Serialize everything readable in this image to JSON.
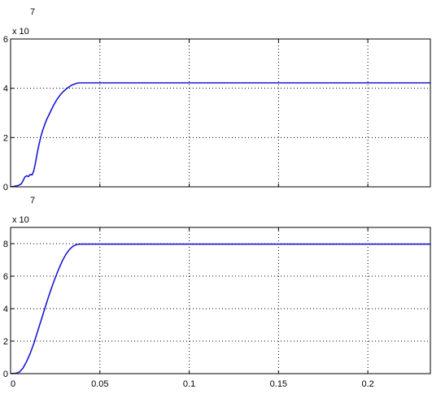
{
  "colors": {
    "line": "#1a1ad4",
    "axis": "#000000",
    "grid": "#000000",
    "background": "#ffffff"
  },
  "chart_data": [
    {
      "type": "line",
      "title": "",
      "xlabel": "",
      "ylabel": "",
      "grid": true,
      "xlim": [
        0,
        0.235
      ],
      "ylim": [
        0,
        6
      ],
      "y_multiplier_label": {
        "base": "x 10",
        "exponent": "7"
      },
      "x_tick_labels": [],
      "y_ticks": [
        {
          "value": 0,
          "label": "0"
        },
        {
          "value": 2,
          "label": "2"
        },
        {
          "value": 4,
          "label": "4"
        },
        {
          "value": 6,
          "label": "6"
        }
      ],
      "x_grid": [
        0.05,
        0.1,
        0.15,
        0.2
      ],
      "series": [
        {
          "x": [
            0,
            0.002,
            0.004,
            0.005,
            0.006,
            0.007,
            0.008,
            0.009,
            0.01,
            0.011,
            0.012,
            0.013,
            0.014,
            0.015,
            0.016,
            0.017,
            0.018,
            0.019,
            0.02,
            0.022,
            0.024,
            0.026,
            0.028,
            0.03,
            0.032,
            0.034,
            0.036,
            0.038,
            0.04,
            0.06,
            0.1,
            0.15,
            0.2,
            0.235
          ],
          "y": [
            0.0,
            0.02,
            0.05,
            0.08,
            0.12,
            0.25,
            0.4,
            0.45,
            0.42,
            0.5,
            0.48,
            0.65,
            1.0,
            1.4,
            1.75,
            2.05,
            2.3,
            2.5,
            2.7,
            3.0,
            3.3,
            3.55,
            3.75,
            3.9,
            4.02,
            4.12,
            4.18,
            4.22,
            4.22,
            4.22,
            4.22,
            4.22,
            4.22,
            4.22
          ]
        }
      ]
    },
    {
      "type": "line",
      "title": "",
      "xlabel": "",
      "ylabel": "",
      "grid": true,
      "xlim": [
        0,
        0.235
      ],
      "ylim": [
        0,
        9
      ],
      "y_multiplier_label": {
        "base": "x 10",
        "exponent": "7"
      },
      "x_tick_labels": [
        {
          "value": 0,
          "label": "0"
        },
        {
          "value": 0.05,
          "label": "0.05"
        },
        {
          "value": 0.1,
          "label": "0.1"
        },
        {
          "value": 0.15,
          "label": "0.15"
        },
        {
          "value": 0.2,
          "label": "0.2"
        }
      ],
      "y_ticks": [
        {
          "value": 0,
          "label": "0"
        },
        {
          "value": 2,
          "label": "2"
        },
        {
          "value": 4,
          "label": "4"
        },
        {
          "value": 6,
          "label": "6"
        },
        {
          "value": 8,
          "label": "8"
        }
      ],
      "x_grid": [
        0.05,
        0.1,
        0.15,
        0.2
      ],
      "series": [
        {
          "x": [
            0,
            0.003,
            0.005,
            0.007,
            0.009,
            0.011,
            0.013,
            0.015,
            0.017,
            0.019,
            0.021,
            0.023,
            0.025,
            0.027,
            0.029,
            0.031,
            0.033,
            0.035,
            0.037,
            0.039,
            0.06,
            0.1,
            0.15,
            0.2,
            0.235
          ],
          "y": [
            0.0,
            0.02,
            0.1,
            0.35,
            0.75,
            1.25,
            1.85,
            2.55,
            3.25,
            3.95,
            4.65,
            5.3,
            5.9,
            6.45,
            6.95,
            7.35,
            7.65,
            7.85,
            7.95,
            7.97,
            7.97,
            7.97,
            7.97,
            7.97,
            7.97
          ]
        }
      ]
    }
  ]
}
